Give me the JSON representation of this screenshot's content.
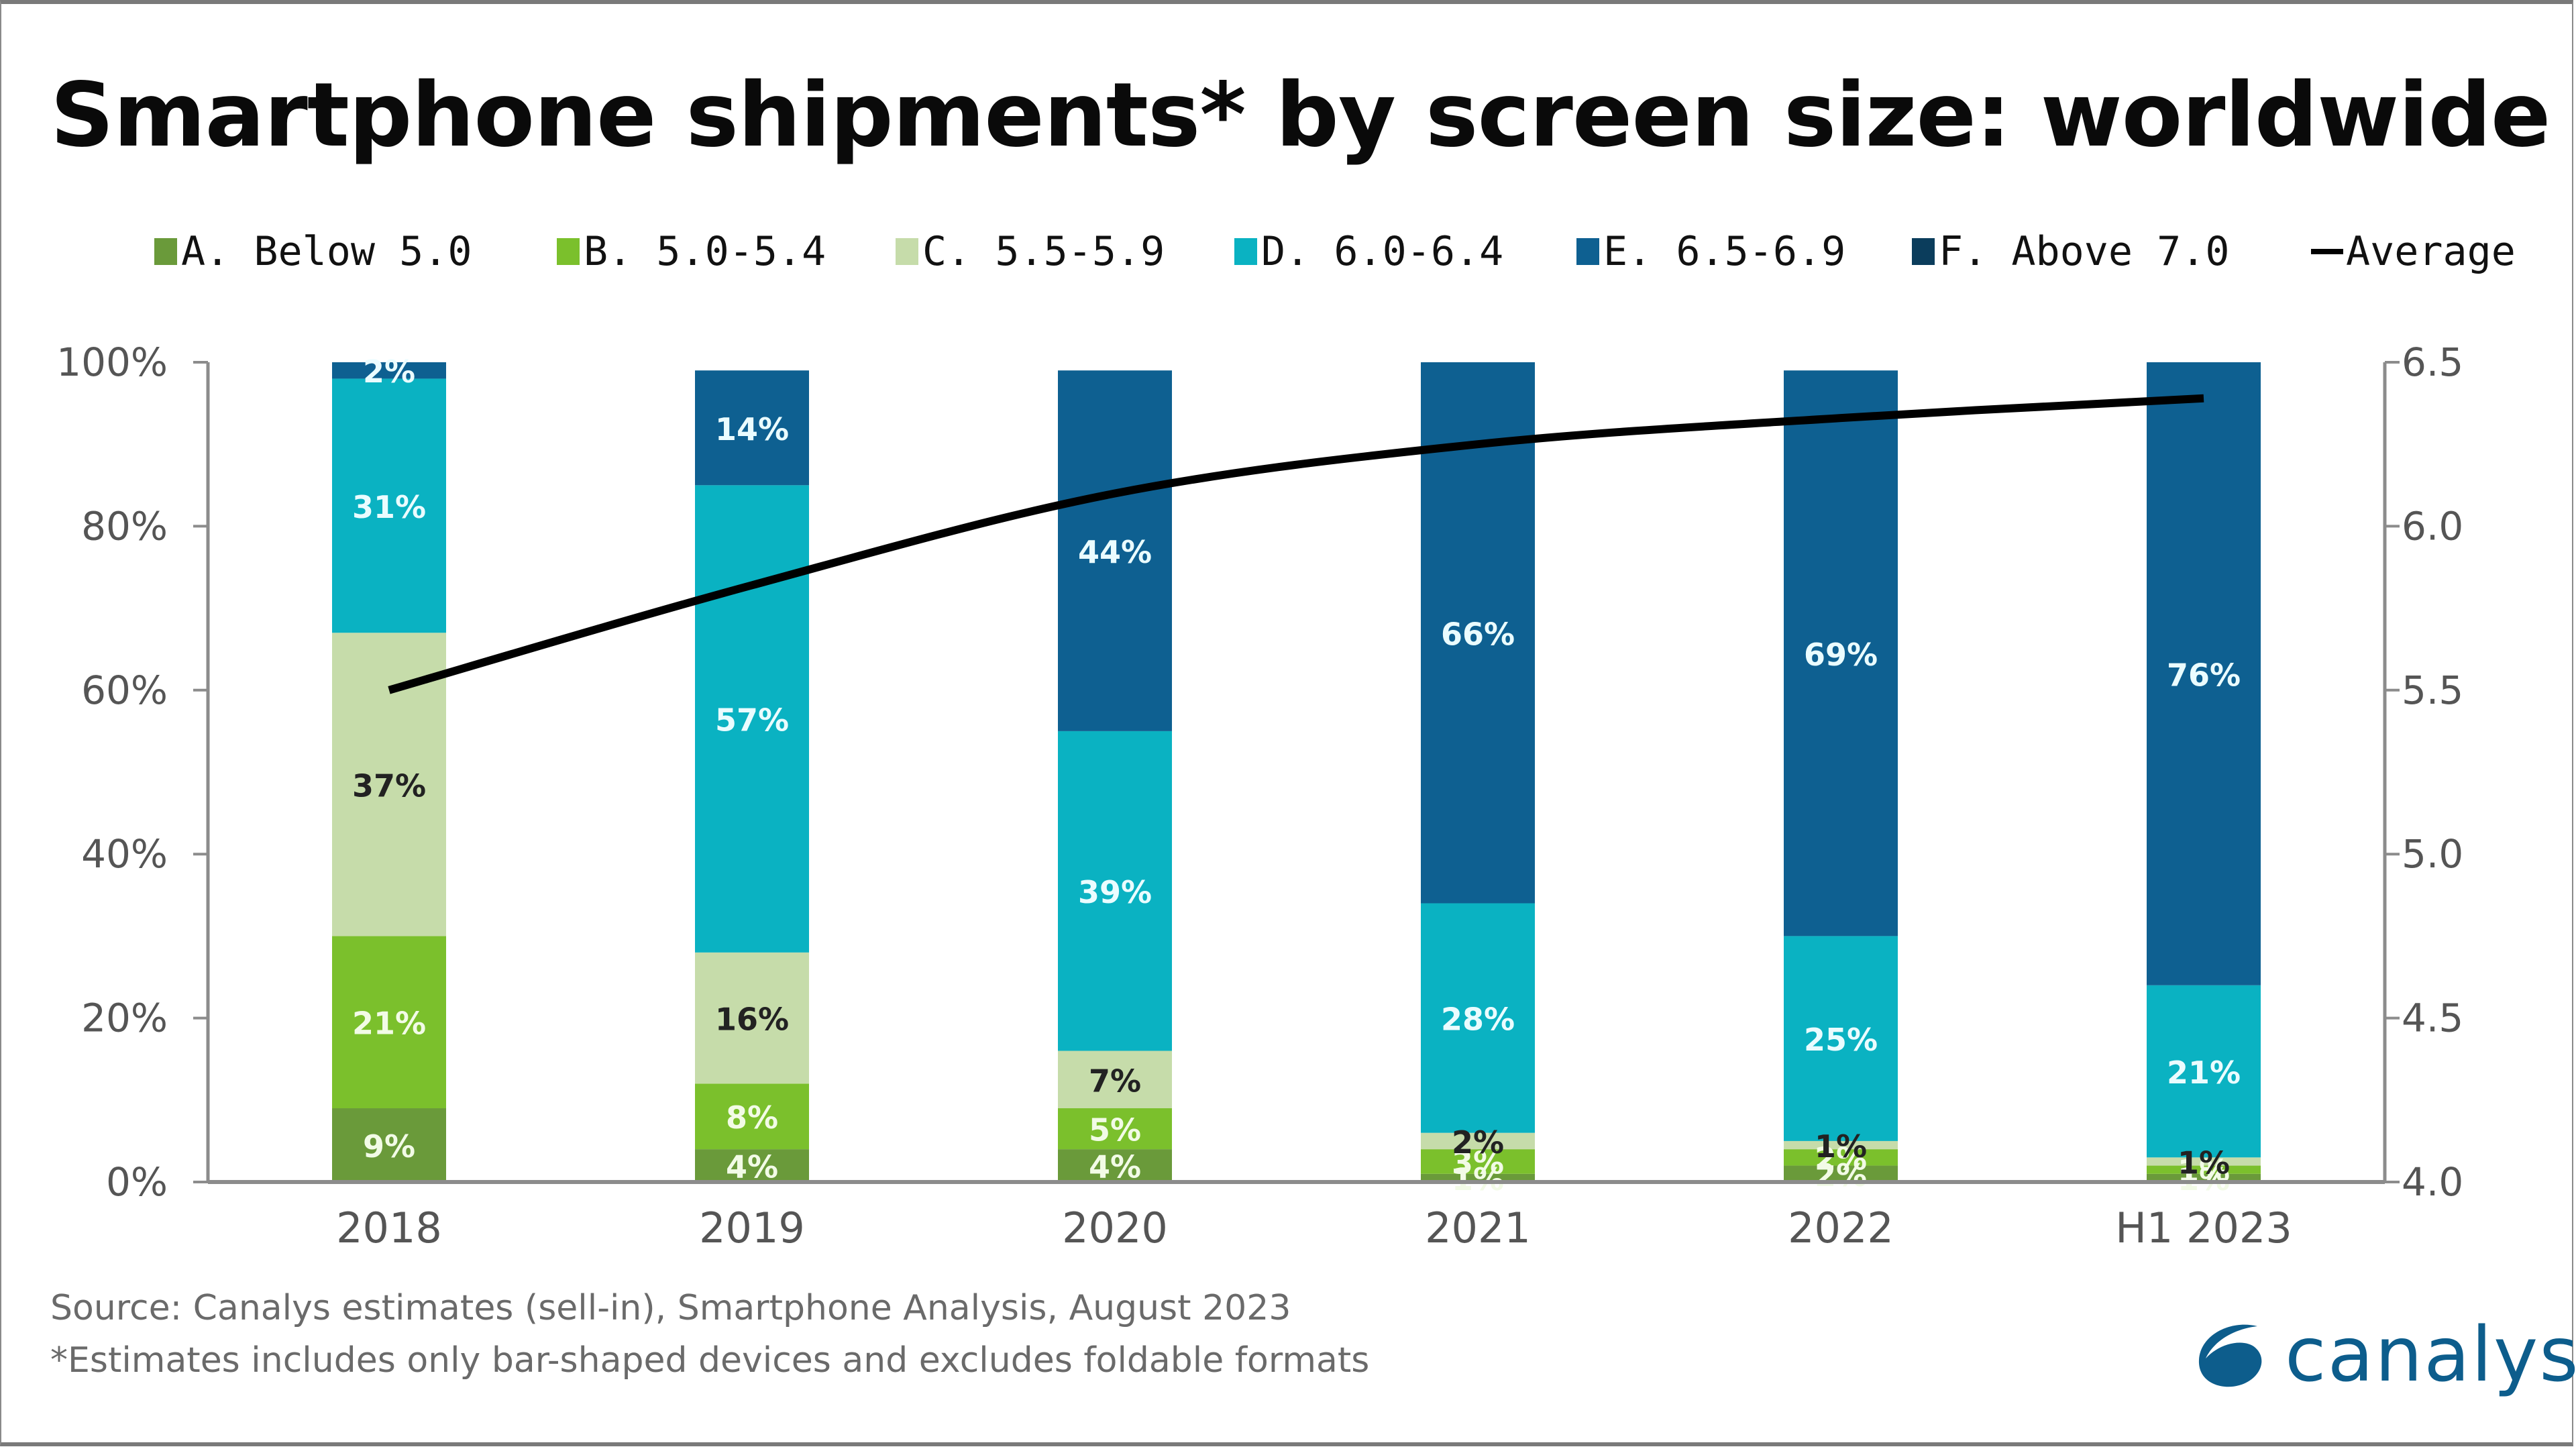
{
  "title": "Smartphone shipments* by screen size: worldwide",
  "legend": [
    {
      "key": "A",
      "label": "A. Below 5.0",
      "color": "#6a9a3a",
      "type": "bar"
    },
    {
      "key": "B",
      "label": "B. 5.0-5.4",
      "color": "#7bc02c",
      "type": "bar"
    },
    {
      "key": "C",
      "label": "C. 5.5-5.9",
      "color": "#c6dcaa",
      "type": "bar"
    },
    {
      "key": "D",
      "label": "D. 6.0-6.4",
      "color": "#0ab2c2",
      "type": "bar"
    },
    {
      "key": "E",
      "label": "E. 6.5-6.9",
      "color": "#0e6091",
      "type": "bar"
    },
    {
      "key": "F",
      "label": "F. Above 7.0",
      "color": "#0b3d5c",
      "type": "bar"
    },
    {
      "key": "avg",
      "label": "Average",
      "color": "#000000",
      "type": "line"
    }
  ],
  "chart_data": {
    "type": "bar",
    "stacked": true,
    "title": "Smartphone shipments* by screen size: worldwide",
    "categories": [
      "2018",
      "2019",
      "2020",
      "2021",
      "2022",
      "H1 2023"
    ],
    "series": [
      {
        "name": "A. Below 5.0",
        "values": [
          9,
          4,
          4,
          1,
          2,
          1
        ],
        "labels": [
          "9%",
          "4%",
          "4%",
          "1%",
          "2%",
          "1%"
        ],
        "label_color": "#f2fbe6"
      },
      {
        "name": "B. 5.0-5.4",
        "values": [
          21,
          8,
          5,
          3,
          2,
          1
        ],
        "labels": [
          "21%",
          "8%",
          "5%",
          "3%",
          "2%",
          "1%"
        ],
        "label_color": "#f2fbe6"
      },
      {
        "name": "C. 5.5-5.9",
        "values": [
          37,
          16,
          7,
          2,
          1,
          1
        ],
        "labels": [
          "37%",
          "16%",
          "7%",
          "2%",
          "1%",
          "1%"
        ],
        "label_color": "#222222"
      },
      {
        "name": "D. 6.0-6.4",
        "values": [
          31,
          57,
          39,
          28,
          25,
          21
        ],
        "labels": [
          "31%",
          "57%",
          "39%",
          "28%",
          "25%",
          "21%"
        ],
        "label_color": "#eafcff"
      },
      {
        "name": "E. 6.5-6.9",
        "values": [
          2,
          14,
          44,
          66,
          69,
          76
        ],
        "labels": [
          "2%",
          "14%",
          "44%",
          "66%",
          "69%",
          "76%"
        ],
        "label_color": "#eafcff"
      },
      {
        "name": "F. Above 7.0",
        "values": [
          0,
          0,
          0,
          0,
          0,
          0
        ],
        "labels": [
          "",
          "",
          "",
          "",
          "",
          ""
        ],
        "label_color": "#eafcff"
      }
    ],
    "line_series": {
      "name": "Average",
      "axis": "right",
      "values": [
        5.5,
        5.82,
        6.1,
        6.25,
        6.33,
        6.39
      ]
    },
    "ylabel": "",
    "xlabel": "",
    "ylim": [
      0,
      100
    ],
    "y_ticks": [
      "0%",
      "20%",
      "40%",
      "60%",
      "80%",
      "100%"
    ],
    "y2lim": [
      4.0,
      6.5
    ],
    "y2_ticks": [
      "4.0",
      "4.5",
      "5.0",
      "5.5",
      "6.0",
      "6.5"
    ],
    "legend_position": "top",
    "grid": false
  },
  "footer": {
    "source": "Source: Canalys estimates (sell-in), Smartphone Analysis, August 2023",
    "note": "*Estimates includes only bar-shaped devices and excludes foldable formats"
  },
  "logo": {
    "text": "canalys",
    "color": "#0d5d8c"
  }
}
